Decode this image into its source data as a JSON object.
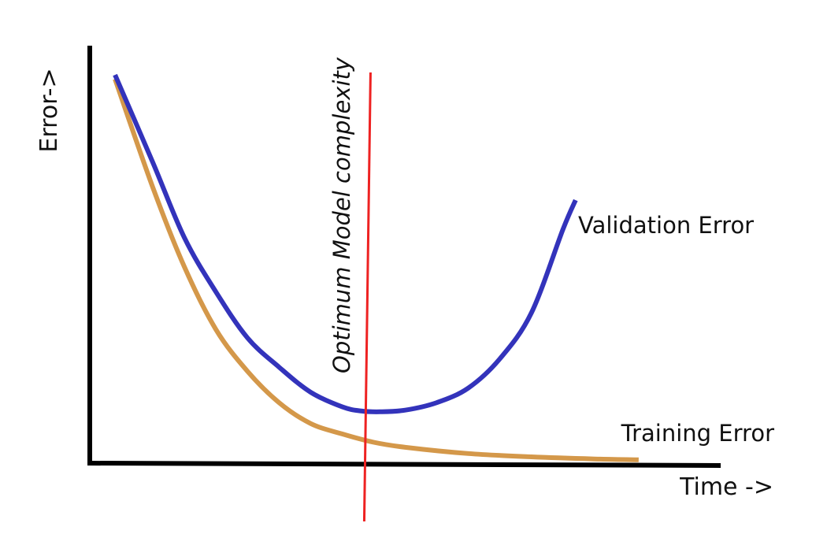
{
  "chart_data": {
    "type": "line",
    "title": "",
    "xlabel": "Time ->",
    "ylabel": "Error->",
    "xlim": [
      0,
      10
    ],
    "ylim": [
      0,
      10
    ],
    "grid": false,
    "legend": "inline labels at line ends",
    "series": [
      {
        "name": "Validation Error",
        "color": "#3333bb",
        "x": [
          0.4,
          1.0,
          1.5,
          2.0,
          2.5,
          3.0,
          3.5,
          4.0,
          4.3,
          4.6,
          5.0,
          5.5,
          6.0,
          6.5,
          7.0,
          7.5,
          7.7
        ],
        "y": [
          9.3,
          7.2,
          5.4,
          4.1,
          3.0,
          2.3,
          1.7,
          1.35,
          1.25,
          1.23,
          1.27,
          1.45,
          1.8,
          2.5,
          3.6,
          5.6,
          6.3
        ]
      },
      {
        "name": "Training Error",
        "color": "#d4984a",
        "x": [
          0.4,
          1.0,
          1.5,
          2.0,
          2.5,
          3.0,
          3.5,
          4.0,
          4.5,
          5.0,
          6.0,
          7.0,
          8.0,
          8.7
        ],
        "y": [
          9.2,
          6.6,
          4.7,
          3.2,
          2.2,
          1.45,
          0.95,
          0.7,
          0.5,
          0.38,
          0.23,
          0.15,
          0.1,
          0.08
        ]
      }
    ],
    "annotations": [
      {
        "text": "Optimum Model complexity",
        "x": 4.4,
        "color": "#ee2222"
      }
    ]
  }
}
